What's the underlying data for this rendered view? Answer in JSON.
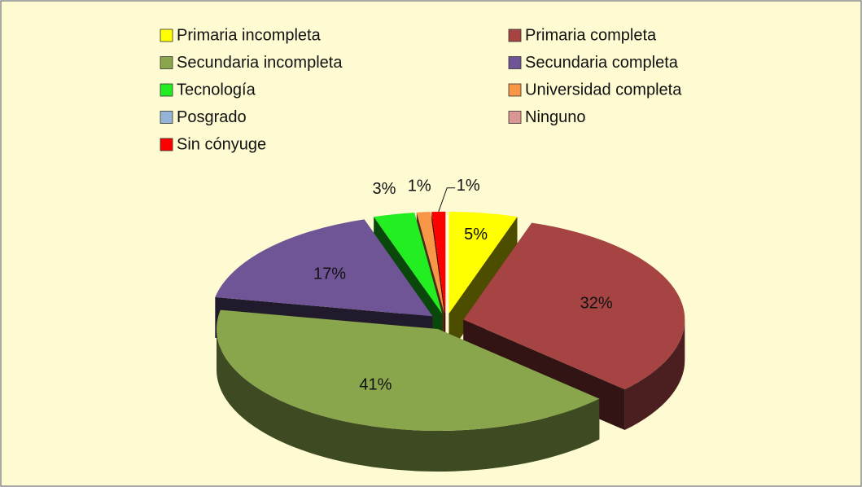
{
  "chart_data": {
    "type": "pie",
    "categories": [
      "Primaria incompleta",
      "Primaria completa",
      "Secundaria incompleta",
      "Secundaria completa",
      "Tecnología",
      "Universidad completa",
      "Posgrado",
      "Ninguno",
      "Sin cónyuge"
    ],
    "values": [
      5,
      32,
      41,
      17,
      3,
      1,
      0,
      0,
      1
    ],
    "value_labels": [
      "5%",
      "32%",
      "41%",
      "17%",
      "3%",
      "1%",
      null,
      null,
      "1%"
    ],
    "colors": [
      "#ffff00",
      "#a64444",
      "#8aa64c",
      "#6f5596",
      "#22ee22",
      "#f79646",
      "#95b3d7",
      "#d99694",
      "#ff0000"
    ]
  }
}
